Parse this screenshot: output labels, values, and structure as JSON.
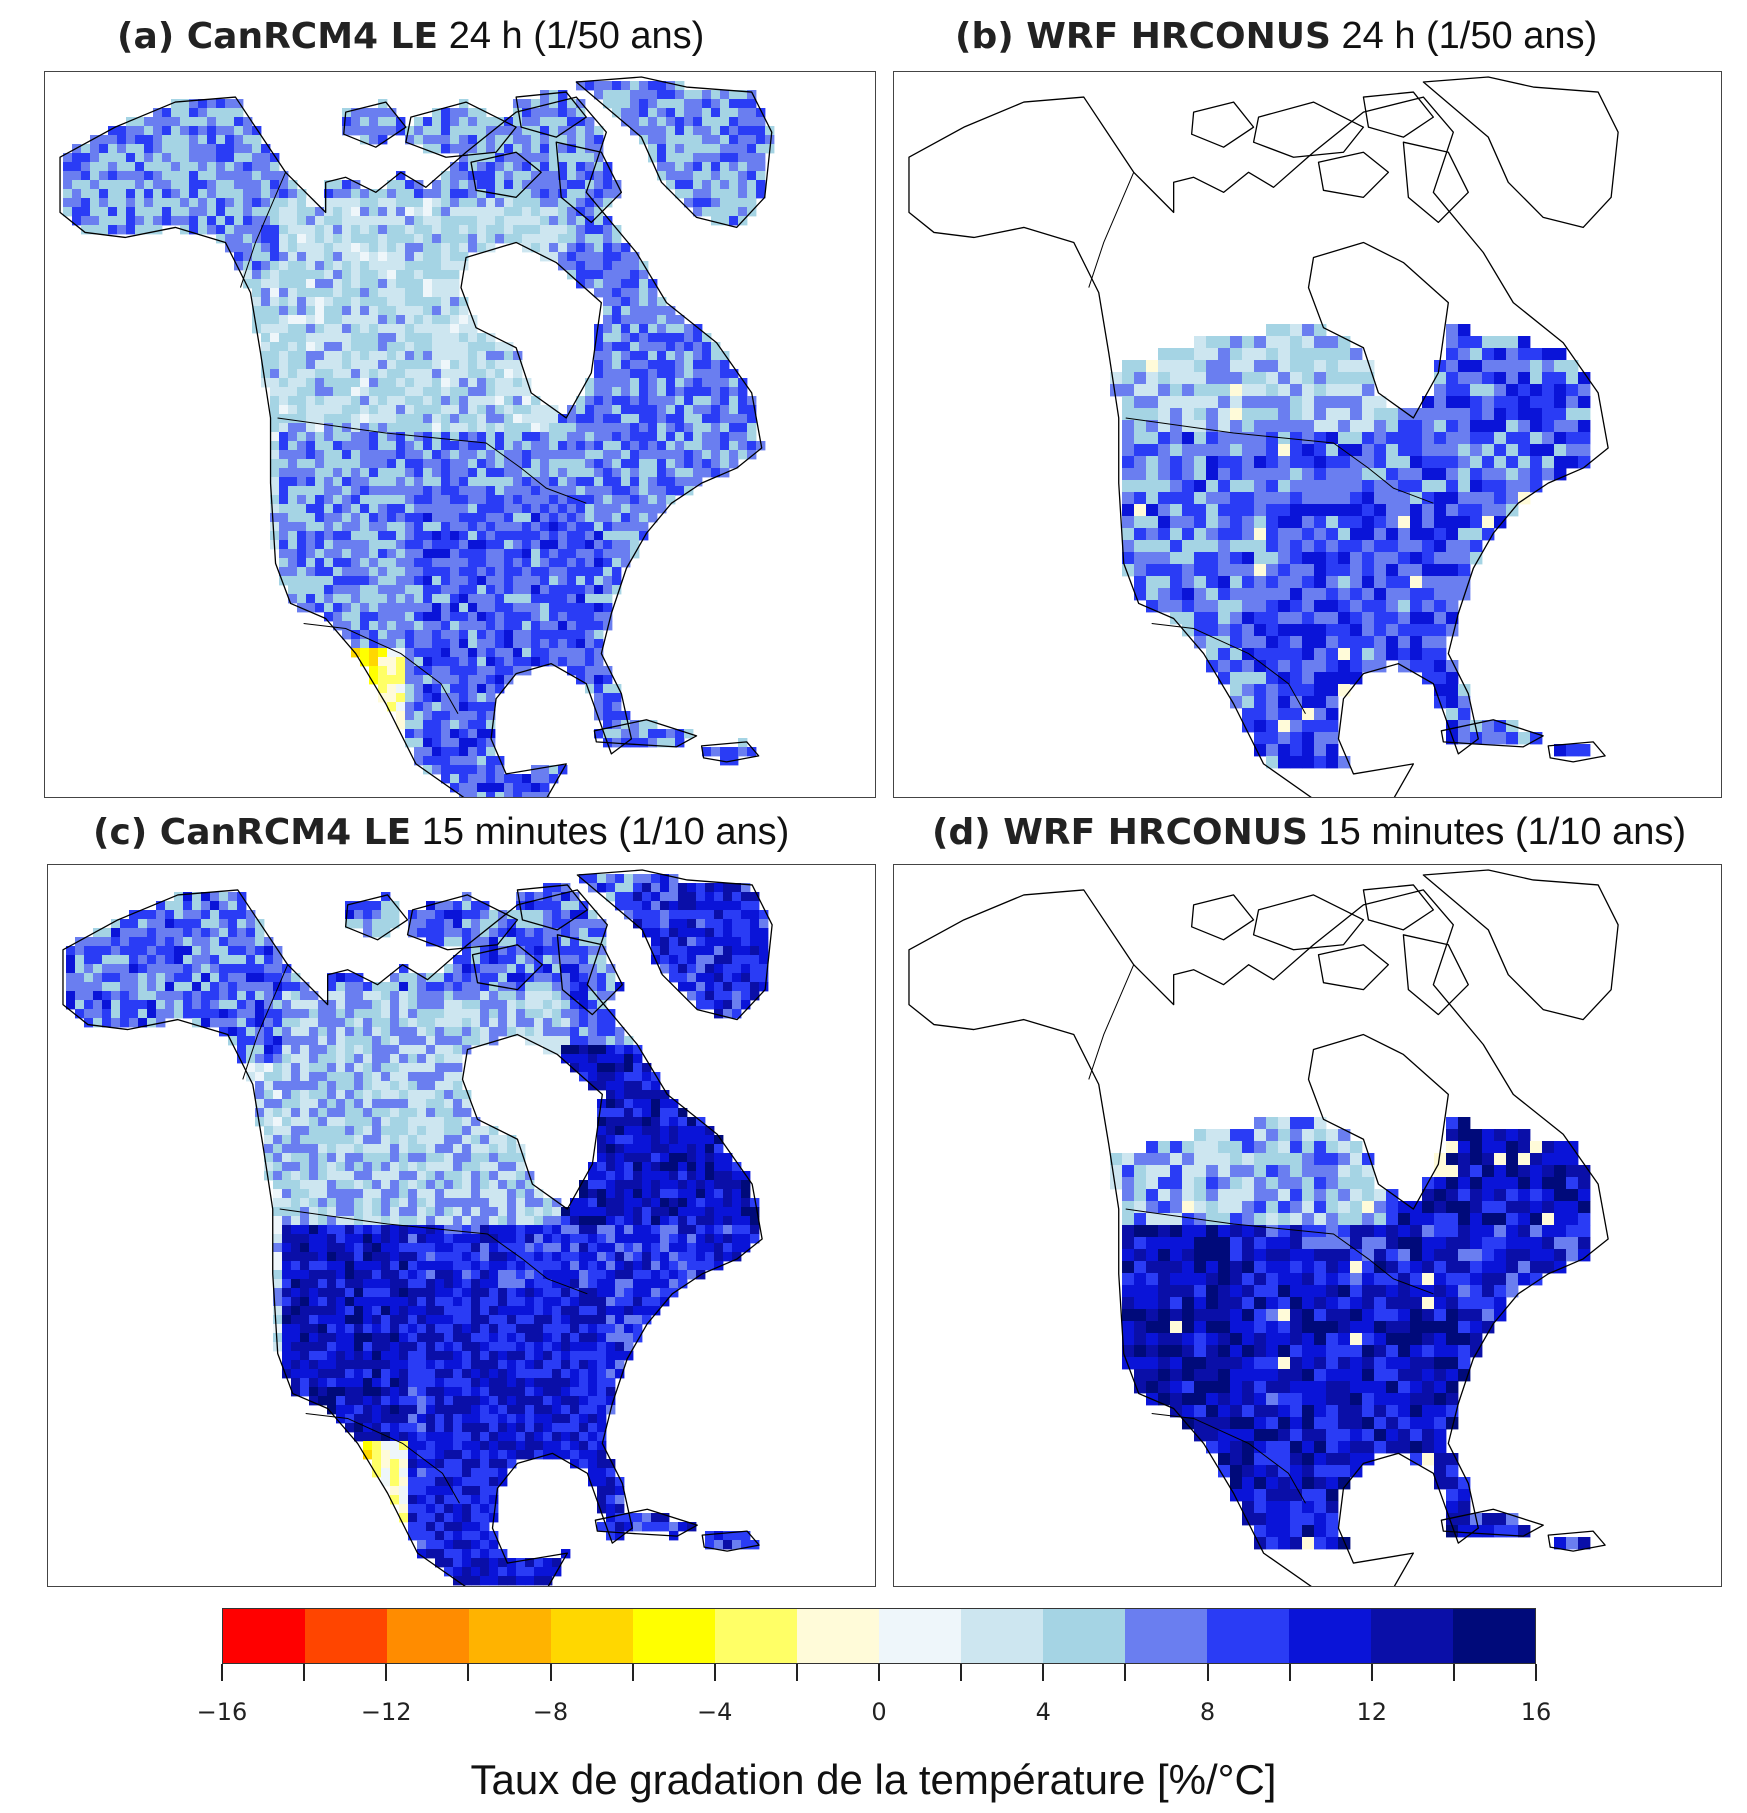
{
  "panels": [
    {
      "label": "(a) CanRCM4 LE",
      "subtitle": "24 h (1/50 ans)",
      "model": "canrcm",
      "intensity": "moderate"
    },
    {
      "label": "(b) WRF HRCONUS",
      "subtitle": "24 h (1/50 ans)",
      "model": "wrf",
      "intensity": "moderate"
    },
    {
      "label": "(c) CanRCM4 LE",
      "subtitle": "15 minutes (1/10 ans)",
      "model": "canrcm",
      "intensity": "strong"
    },
    {
      "label": "(d) WRF HRCONUS",
      "subtitle": "15 minutes (1/10 ans)",
      "model": "wrf",
      "intensity": "strong"
    }
  ],
  "colorbar": {
    "title": "Taux de gradation de la température [%/°C]",
    "min": -16,
    "max": 16,
    "step": 2,
    "tick_labels": [
      "-16",
      "-12",
      "-8",
      "-4",
      "0",
      "4",
      "8",
      "12",
      "16"
    ],
    "colors": [
      "#ff0000",
      "#ff4500",
      "#ff8c00",
      "#ffb300",
      "#ffd700",
      "#ffff00",
      "#ffff66",
      "#fffbd9",
      "#eef6fa",
      "#cde6f0",
      "#a5d4e4",
      "#6a7ef0",
      "#2a3cf5",
      "#0a14d8",
      "#0a0fa8",
      "#000a7a"
    ]
  }
}
